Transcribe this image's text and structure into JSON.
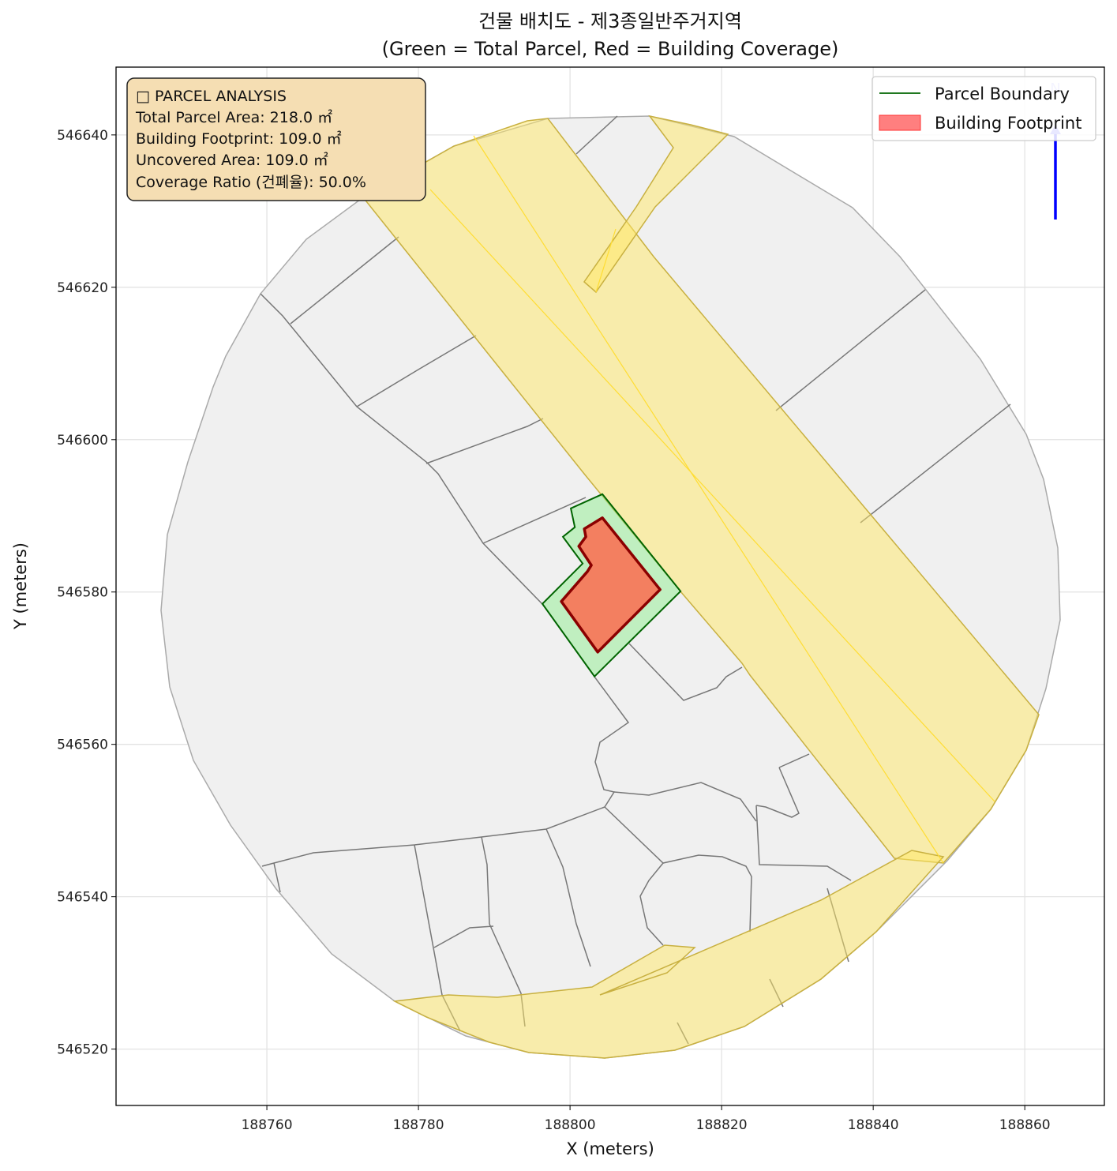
{
  "chart_data": {
    "type": "map",
    "title": "건물 배치도 - 제3종일반주거지역",
    "subtitle": "(Green = Total Parcel, Red = Building Coverage)",
    "xlabel": "X (meters)",
    "ylabel": "Y (meters)",
    "xlim": [
      188740.1,
      188870.5
    ],
    "ylim": [
      546512.6,
      546648.9
    ],
    "xticks": [
      188760,
      188780,
      188800,
      188820,
      188840,
      188860
    ],
    "yticks": [
      546520,
      546540,
      546560,
      546580,
      546600,
      546620,
      546640
    ],
    "grid": true,
    "legend": {
      "placement": "top-right",
      "entries": [
        {
          "label": "Parcel Boundary",
          "color": "#006400",
          "kind": "line"
        },
        {
          "label": "Building Footprint",
          "color": "#ff0000",
          "kind": "patch"
        }
      ]
    },
    "parcel_polygon": [
      [
        188804.27,
        546592.85
      ],
      [
        188800.1,
        546590.98
      ],
      [
        188800.63,
        546588.5
      ],
      [
        188799.06,
        546587.25
      ],
      [
        188801.67,
        546583.73
      ],
      [
        188796.35,
        546578.45
      ],
      [
        188803.23,
        546568.91
      ],
      [
        188814.58,
        546580.1
      ]
    ],
    "building_polygon": [
      [
        188804.27,
        546589.74
      ],
      [
        188801.88,
        546588.29
      ],
      [
        188802.08,
        546587.25
      ],
      [
        188801.15,
        546586.01
      ],
      [
        188802.81,
        546583.52
      ],
      [
        188802.29,
        546582.69
      ],
      [
        188798.85,
        546578.76
      ],
      [
        188803.65,
        546572.12
      ],
      [
        188811.88,
        546580.31
      ]
    ],
    "colors": {
      "parcel_fill": "#90ee90",
      "parcel_edge": "#006400",
      "building_fill": "#ff6347",
      "building_edge": "#8b0000",
      "road": "#ffe766",
      "context": "#f0f0f0",
      "north_arrow": "#0000ff"
    },
    "north_label": "N",
    "info_box": {
      "heading": "□ PARCEL ANALYSIS",
      "lines": [
        "Total Parcel Area: 218.0 ㎡",
        "Building Footprint: 109.0 ㎡",
        "Uncovered Area: 109.0 ㎡",
        "Coverage Ratio (건폐율): 50.0%"
      ]
    }
  }
}
